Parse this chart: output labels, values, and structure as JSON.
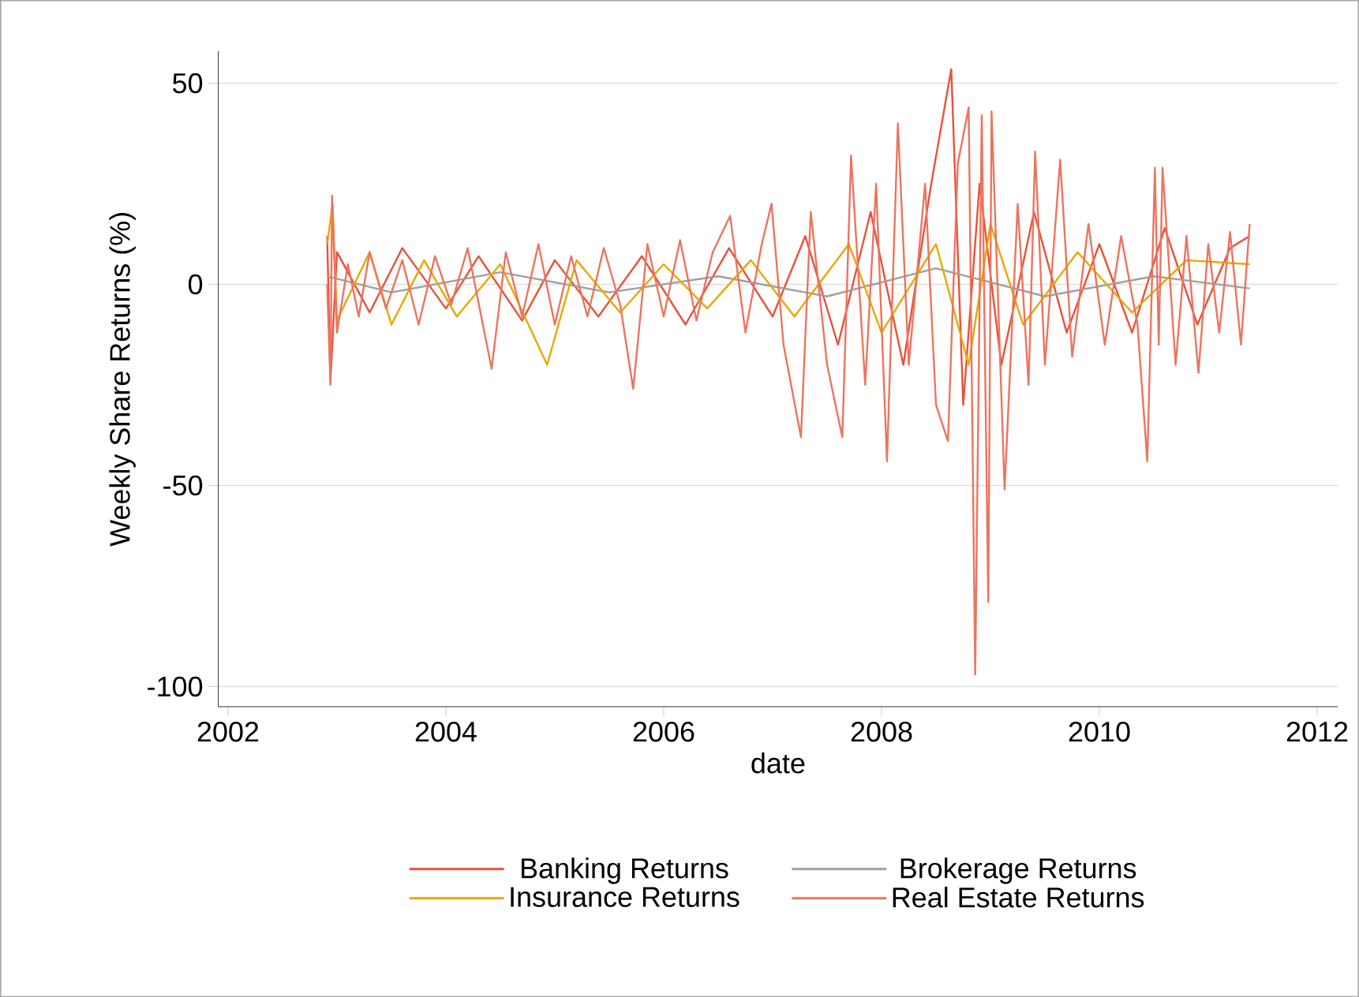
{
  "chart_data": {
    "type": "line",
    "xlabel": "date",
    "ylabel": "Weekly Share Returns (%)",
    "xlim": [
      2001.91,
      2012.19
    ],
    "ylim": [
      -105,
      58
    ],
    "xticks": [
      2002,
      2004,
      2006,
      2008,
      2010,
      2012
    ],
    "yticks": [
      -100,
      -50,
      0,
      50
    ],
    "grid": "y",
    "legend": "bottom",
    "series": [
      {
        "name": "Banking Returns",
        "color": "#e8513a",
        "x": [
          2002.91,
          2002.94,
          2003.0,
          2003.3,
          2003.6,
          2004.0,
          2004.3,
          2004.7,
          2005.0,
          2005.4,
          2005.8,
          2006.2,
          2006.6,
          2007.0,
          2007.3,
          2007.6,
          2007.9,
          2008.2,
          2008.45,
          2008.64,
          2008.75,
          2008.9,
          2009.1,
          2009.4,
          2009.7,
          2010.0,
          2010.3,
          2010.6,
          2010.9,
          2011.2,
          2011.38
        ],
        "values": [
          12,
          -24,
          8,
          -7,
          9,
          -6,
          7,
          -9,
          6,
          -8,
          7,
          -10,
          9,
          -8,
          12,
          -15,
          18,
          -20,
          24,
          53.5,
          -30,
          25,
          -20,
          18,
          -12,
          10,
          -12,
          14,
          -10,
          9,
          12
        ]
      },
      {
        "name": "Brokerage Returns",
        "color": "#a0a0a0",
        "x": [
          2002.91,
          2003.5,
          2004.5,
          2005.5,
          2006.5,
          2007.5,
          2008.5,
          2009.5,
          2010.5,
          2011.38
        ],
        "values": [
          2,
          -2,
          3,
          -2,
          2,
          -3,
          4,
          -3,
          2,
          -1
        ]
      },
      {
        "name": "Insurance Returns",
        "color": "#e8a800",
        "x": [
          2002.91,
          2002.96,
          2003.0,
          2003.3,
          2003.5,
          2003.8,
          2004.1,
          2004.5,
          2004.93,
          2005.2,
          2005.6,
          2006.0,
          2006.4,
          2006.8,
          2007.2,
          2007.7,
          2008.0,
          2008.5,
          2008.8,
          2009.0,
          2009.3,
          2009.8,
          2010.3,
          2010.8,
          2011.38
        ],
        "values": [
          10,
          20,
          -9,
          8,
          -10,
          6,
          -8,
          5,
          -20,
          6,
          -7,
          5,
          -6,
          6,
          -8,
          10,
          -12,
          10,
          -20,
          15,
          -10,
          8,
          -7,
          6,
          5
        ]
      },
      {
        "name": "Real Estate Returns",
        "color": "#ea7560",
        "x": [
          2002.91,
          2002.94,
          2002.955,
          2003.0,
          2003.1,
          2003.2,
          2003.3,
          2003.45,
          2003.6,
          2003.75,
          2003.9,
          2004.05,
          2004.2,
          2004.42,
          2004.55,
          2004.7,
          2004.85,
          2005.0,
          2005.15,
          2005.3,
          2005.45,
          2005.6,
          2005.72,
          2005.85,
          2006.0,
          2006.15,
          2006.3,
          2006.45,
          2006.61,
          2006.75,
          2006.9,
          2006.99,
          2007.1,
          2007.26,
          2007.35,
          2007.5,
          2007.64,
          2007.72,
          2007.85,
          2007.95,
          2008.05,
          2008.15,
          2008.25,
          2008.4,
          2008.5,
          2008.61,
          2008.7,
          2008.8,
          2008.86,
          2008.92,
          2008.98,
          2009.01,
          2009.13,
          2009.25,
          2009.35,
          2009.41,
          2009.5,
          2009.64,
          2009.75,
          2009.9,
          2010.05,
          2010.2,
          2010.35,
          2010.44,
          2010.51,
          2010.545,
          2010.58,
          2010.7,
          2010.8,
          2010.91,
          2011.0,
          2011.1,
          2011.2,
          2011.3,
          2011.38
        ],
        "values": [
          0,
          -25,
          22,
          -12,
          5,
          -8,
          8,
          -6,
          6,
          -10,
          7,
          -5,
          9,
          -21,
          8,
          -8,
          10,
          -10,
          7,
          -8,
          9,
          -5,
          -26,
          10,
          -8,
          11,
          -9,
          8,
          17,
          -12,
          10,
          20,
          -15,
          -38,
          18,
          -20,
          -38,
          32,
          -25,
          25,
          -44,
          40,
          -20,
          25,
          -30,
          -39,
          30,
          44,
          -97,
          42,
          -79,
          43,
          -51,
          20,
          -25,
          33,
          -20,
          31,
          -18,
          15,
          -15,
          12,
          -10,
          -44,
          29,
          -15,
          29,
          -20,
          12,
          -22,
          10,
          -12,
          13,
          -15,
          15
        ]
      }
    ]
  }
}
